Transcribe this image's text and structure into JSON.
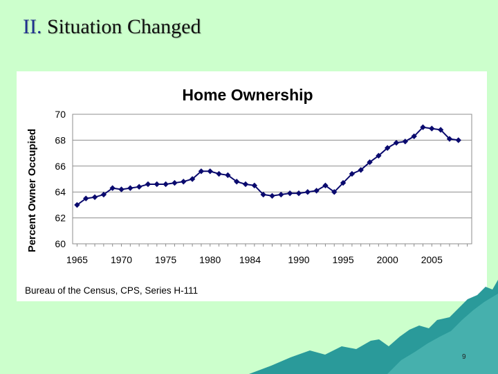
{
  "slide": {
    "title_number": "II.",
    "title_text": "Situation Changed",
    "page_number": "9"
  },
  "colors": {
    "background": "#ccffcc",
    "series": "#0a0a6e",
    "accent_teal": "#2a9a9a"
  },
  "chart_data": {
    "type": "line",
    "title": "Home Ownership",
    "xlabel": "",
    "ylabel": "Percent Owner Occupied",
    "source": "Bureau of the Census, CPS, Series H-111",
    "xlim": [
      1964.5,
      2009.5
    ],
    "ylim": [
      60,
      70
    ],
    "y_ticks": [
      60,
      62,
      64,
      66,
      68,
      70
    ],
    "x_tick_labels": [
      "1965",
      "1970",
      "1975",
      "1980",
      "1984",
      "1990",
      "1995",
      "2000",
      "2005"
    ],
    "x_tick_positions": [
      1965,
      1970,
      1975,
      1980,
      1984.5,
      1990,
      1995,
      2000,
      2005
    ],
    "grid": true,
    "series": [
      {
        "name": "Percent Owner Occupied",
        "x": [
          1965,
          1966,
          1967,
          1968,
          1969,
          1970,
          1971,
          1972,
          1973,
          1974,
          1975,
          1976,
          1977,
          1978,
          1979,
          1980,
          1981,
          1982,
          1983,
          1984,
          1985,
          1986,
          1987,
          1988,
          1989,
          1990,
          1991,
          1992,
          1993,
          1994,
          1995,
          1996,
          1997,
          1998,
          1999,
          2000,
          2001,
          2002,
          2003,
          2004,
          2005,
          2006,
          2007,
          2008
        ],
        "values": [
          63.0,
          63.5,
          63.6,
          63.8,
          64.3,
          64.2,
          64.3,
          64.4,
          64.6,
          64.6,
          64.6,
          64.7,
          64.8,
          65.0,
          65.6,
          65.6,
          65.4,
          65.3,
          64.8,
          64.6,
          64.5,
          63.8,
          63.7,
          63.8,
          63.9,
          63.9,
          64.0,
          64.1,
          64.5,
          64.0,
          64.7,
          65.4,
          65.7,
          66.3,
          66.8,
          67.4,
          67.8,
          67.9,
          68.3,
          69.0,
          68.9,
          68.8,
          68.1,
          68.0
        ]
      }
    ]
  }
}
